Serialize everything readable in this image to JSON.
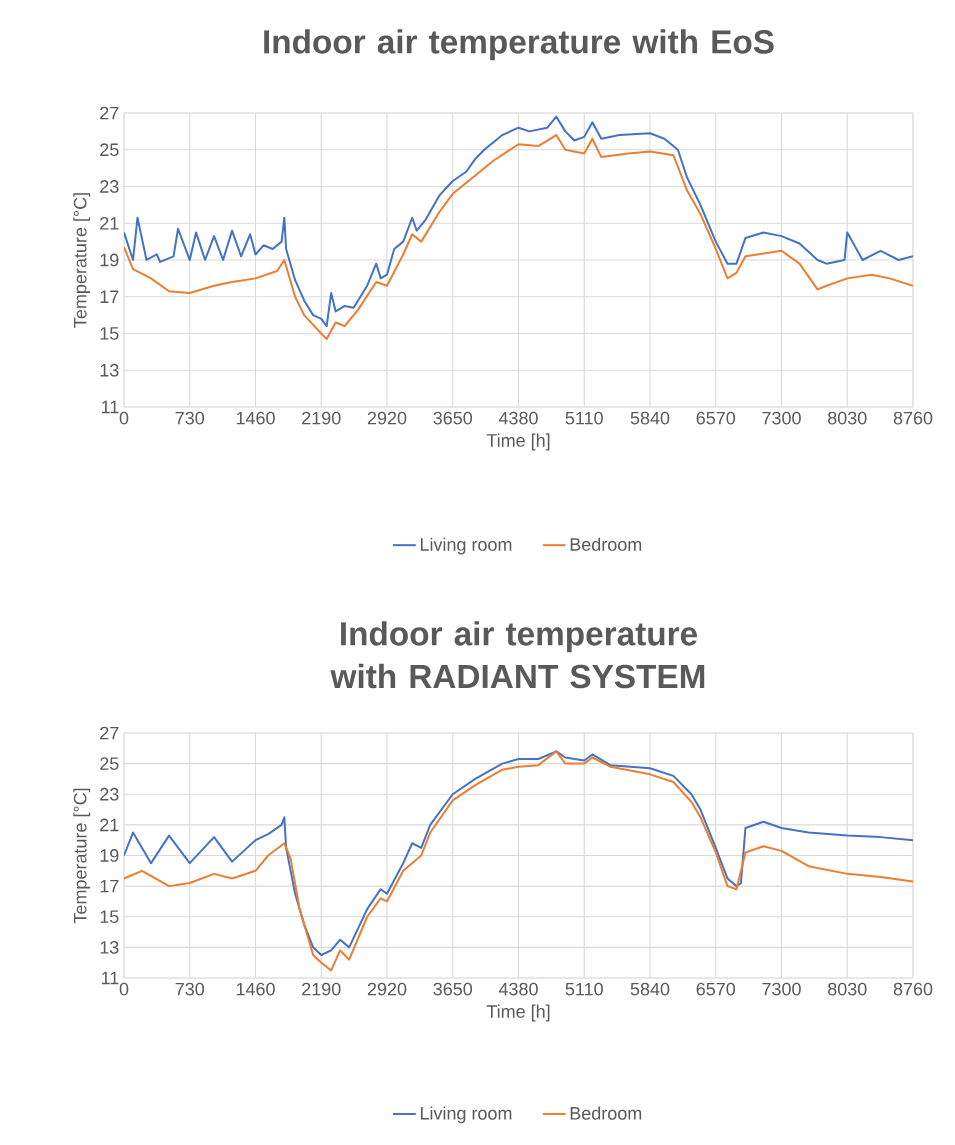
{
  "chart_data": [
    {
      "type": "line",
      "title": "Indoor air temperature with EoS",
      "xlabel": "Time [h]",
      "ylabel": "Temperature [°C]",
      "xlim": [
        0,
        8760
      ],
      "ylim": [
        11,
        27
      ],
      "xticks": [
        0,
        730,
        1460,
        2190,
        2920,
        3650,
        4380,
        5110,
        5840,
        6570,
        7300,
        8030,
        8760
      ],
      "yticks": [
        11,
        13,
        15,
        17,
        19,
        21,
        23,
        25,
        27
      ],
      "grid": true,
      "legend": "bottom",
      "series": [
        {
          "name": "Living room",
          "color": "#4472c4",
          "x": [
            0,
            100,
            150,
            250,
            365,
            400,
            550,
            600,
            730,
            800,
            900,
            1000,
            1100,
            1200,
            1300,
            1400,
            1460,
            1550,
            1650,
            1750,
            1780,
            1800,
            1900,
            2000,
            2100,
            2190,
            2250,
            2300,
            2350,
            2450,
            2550,
            2700,
            2800,
            2850,
            2920,
            3000,
            3100,
            3200,
            3250,
            3350,
            3500,
            3650,
            3800,
            3900,
            4000,
            4200,
            4380,
            4500,
            4700,
            4800,
            4900,
            5000,
            5110,
            5200,
            5300,
            5500,
            5840,
            6000,
            6150,
            6250,
            6400,
            6570,
            6700,
            6800,
            6900,
            7100,
            7300,
            7500,
            7700,
            7800,
            8000,
            8030,
            8200,
            8400,
            8600,
            8760
          ],
          "values": [
            20.5,
            19.0,
            21.3,
            19.0,
            19.3,
            18.9,
            19.2,
            20.7,
            19.0,
            20.5,
            19.0,
            20.3,
            19.0,
            20.6,
            19.2,
            20.4,
            19.3,
            19.8,
            19.6,
            20.0,
            21.3,
            19.6,
            17.9,
            16.8,
            16.0,
            15.8,
            15.4,
            17.2,
            16.2,
            16.5,
            16.4,
            17.6,
            18.8,
            18.0,
            18.2,
            19.6,
            20.0,
            21.3,
            20.6,
            21.2,
            22.5,
            23.3,
            23.8,
            24.5,
            25.0,
            25.8,
            26.2,
            26.0,
            26.2,
            26.8,
            26.0,
            25.5,
            25.7,
            26.5,
            25.6,
            25.8,
            25.9,
            25.6,
            25.0,
            23.5,
            22.0,
            20.0,
            18.8,
            18.8,
            20.2,
            20.5,
            20.3,
            19.9,
            19.0,
            18.8,
            19.0,
            20.5,
            19.0,
            19.5,
            19.0,
            19.2
          ]
        },
        {
          "name": "Bedroom",
          "color": "#ed7d31",
          "x": [
            0,
            100,
            300,
            500,
            730,
            1000,
            1200,
            1460,
            1700,
            1780,
            1900,
            2000,
            2190,
            2250,
            2350,
            2450,
            2600,
            2800,
            2920,
            3100,
            3200,
            3300,
            3500,
            3650,
            3900,
            4100,
            4380,
            4600,
            4800,
            4900,
            5110,
            5200,
            5300,
            5600,
            5840,
            6100,
            6250,
            6400,
            6570,
            6700,
            6800,
            6900,
            7300,
            7500,
            7700,
            7800,
            8030,
            8300,
            8500,
            8760
          ],
          "values": [
            19.7,
            18.5,
            18.0,
            17.3,
            17.2,
            17.6,
            17.8,
            18.0,
            18.4,
            19.0,
            17.0,
            16.0,
            15.0,
            14.7,
            15.6,
            15.4,
            16.3,
            17.8,
            17.6,
            19.3,
            20.4,
            20.0,
            21.6,
            22.6,
            23.6,
            24.4,
            25.3,
            25.2,
            25.8,
            25.0,
            24.8,
            25.6,
            24.6,
            24.8,
            24.9,
            24.7,
            22.8,
            21.5,
            19.6,
            18.0,
            18.3,
            19.2,
            19.5,
            18.8,
            17.4,
            17.6,
            18.0,
            18.2,
            18.0,
            17.6
          ]
        }
      ]
    },
    {
      "type": "line",
      "title": "Indoor air temperature with RADIANT SYSTEM",
      "xlabel": "Time [h]",
      "ylabel": "Temperature [°C]",
      "xlim": [
        0,
        8760
      ],
      "ylim": [
        11,
        27
      ],
      "xticks": [
        0,
        730,
        1460,
        2190,
        2920,
        3650,
        4380,
        5110,
        5840,
        6570,
        7300,
        8030,
        8760
      ],
      "yticks": [
        11,
        13,
        15,
        17,
        19,
        21,
        23,
        25,
        27
      ],
      "grid": true,
      "legend": "bottom",
      "series": [
        {
          "name": "Living room",
          "color": "#4472c4",
          "x": [
            0,
            100,
            300,
            500,
            730,
            1000,
            1200,
            1460,
            1600,
            1750,
            1780,
            1800,
            1900,
            2000,
            2100,
            2190,
            2300,
            2400,
            2500,
            2700,
            2850,
            2920,
            3100,
            3200,
            3300,
            3400,
            3650,
            3900,
            4200,
            4380,
            4600,
            4800,
            4900,
            5110,
            5200,
            5400,
            5840,
            6100,
            6300,
            6400,
            6570,
            6700,
            6800,
            6850,
            6900,
            7100,
            7300,
            7600,
            8030,
            8400,
            8760
          ],
          "values": [
            19.0,
            20.5,
            18.5,
            20.3,
            18.5,
            20.2,
            18.6,
            20.0,
            20.4,
            21.0,
            21.5,
            19.5,
            16.5,
            14.5,
            13.0,
            12.5,
            12.8,
            13.5,
            13.0,
            15.5,
            16.8,
            16.5,
            18.5,
            19.8,
            19.5,
            21.0,
            23.0,
            24.0,
            25.0,
            25.3,
            25.3,
            25.8,
            25.4,
            25.2,
            25.6,
            24.9,
            24.7,
            24.2,
            23.0,
            22.0,
            19.5,
            17.5,
            17.0,
            17.2,
            20.8,
            21.2,
            20.8,
            20.5,
            20.3,
            20.2,
            20.0
          ]
        },
        {
          "name": "Bedroom",
          "color": "#ed7d31",
          "x": [
            0,
            200,
            500,
            730,
            1000,
            1200,
            1460,
            1600,
            1780,
            1850,
            1950,
            2100,
            2190,
            2300,
            2400,
            2500,
            2700,
            2850,
            2920,
            3100,
            3300,
            3400,
            3650,
            3900,
            4200,
            4380,
            4600,
            4800,
            4900,
            5110,
            5200,
            5400,
            5840,
            6100,
            6300,
            6400,
            6570,
            6700,
            6800,
            6900,
            7100,
            7300,
            7600,
            8030,
            8400,
            8760
          ],
          "values": [
            17.5,
            18.0,
            17.0,
            17.2,
            17.8,
            17.5,
            18.0,
            19.0,
            19.8,
            18.8,
            15.5,
            12.5,
            12.0,
            11.5,
            12.8,
            12.2,
            15.0,
            16.2,
            16.0,
            18.0,
            19.0,
            20.5,
            22.6,
            23.6,
            24.6,
            24.8,
            24.9,
            25.8,
            25.0,
            25.0,
            25.4,
            24.8,
            24.3,
            23.8,
            22.5,
            21.5,
            19.2,
            17.0,
            16.8,
            19.2,
            19.6,
            19.3,
            18.3,
            17.8,
            17.6,
            17.3
          ]
        }
      ]
    }
  ]
}
